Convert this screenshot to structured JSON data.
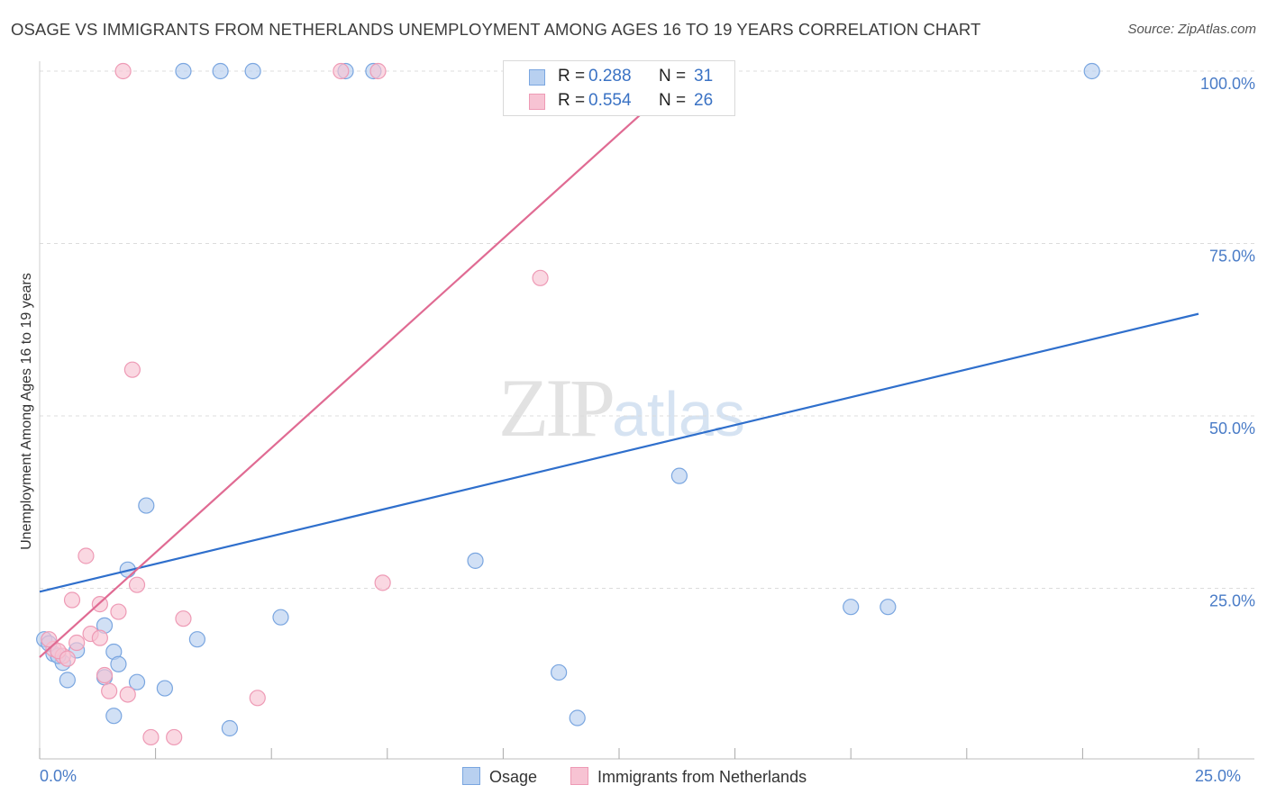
{
  "header": {
    "title": "OSAGE VS IMMIGRANTS FROM NETHERLANDS UNEMPLOYMENT AMONG AGES 16 TO 19 YEARS CORRELATION CHART",
    "source": "Source: ZipAtlas.com"
  },
  "watermark": {
    "zip": "ZIP",
    "atlas": "atlas"
  },
  "legend": {
    "rows": [
      {
        "r_label": "R = ",
        "r_value": "0.288",
        "n_label": "N = ",
        "n_value": "31"
      },
      {
        "r_label": "R = ",
        "r_value": "0.554",
        "n_label": "N = ",
        "n_value": "26"
      }
    ]
  },
  "colors": {
    "osage_fill": "#b8d0f0",
    "osage_stroke": "#7aa6e0",
    "osage_line": "#2f6fcc",
    "neth_fill": "#f7c3d3",
    "neth_stroke": "#ee9ab5",
    "neth_line": "#e06b93"
  },
  "chart_data": {
    "type": "scatter",
    "title": "OSAGE VS IMMIGRANTS FROM NETHERLANDS UNEMPLOYMENT AMONG AGES 16 TO 19 YEARS CORRELATION CHART",
    "xlabel": "",
    "ylabel": "Unemployment Among Ages 16 to 19 years",
    "xlim": [
      0,
      25
    ],
    "ylim": [
      0,
      100
    ],
    "x_tick_labels": [
      "0.0%",
      "25.0%"
    ],
    "y_tick_labels": [
      "25.0%",
      "50.0%",
      "75.0%",
      "100.0%"
    ],
    "y_ticks": [
      25,
      50,
      75,
      100
    ],
    "grid": true,
    "legend_position": "top-center",
    "series": [
      {
        "name": "Osage",
        "r": 0.288,
        "n": 31,
        "trend": [
          [
            0,
            24.5
          ],
          [
            25,
            64.8
          ]
        ],
        "points": [
          [
            3.1,
            100
          ],
          [
            3.9,
            100
          ],
          [
            4.6,
            100
          ],
          [
            6.6,
            100
          ],
          [
            7.2,
            100
          ],
          [
            22.7,
            100
          ],
          [
            2.3,
            37
          ],
          [
            13.8,
            41.3
          ],
          [
            9.4,
            29
          ],
          [
            1.9,
            27.7
          ],
          [
            5.2,
            20.8
          ],
          [
            1.4,
            19.6
          ],
          [
            3.4,
            17.6
          ],
          [
            0.1,
            17.6
          ],
          [
            0.8,
            16
          ],
          [
            1.6,
            15.8
          ],
          [
            0.3,
            15.5
          ],
          [
            0.5,
            14.2
          ],
          [
            1.7,
            14
          ],
          [
            1.4,
            12.1
          ],
          [
            0.6,
            11.7
          ],
          [
            2.1,
            11.4
          ],
          [
            2.7,
            10.5
          ],
          [
            11.2,
            12.8
          ],
          [
            17.5,
            22.3
          ],
          [
            18.3,
            22.3
          ],
          [
            1.6,
            6.5
          ],
          [
            11.6,
            6.2
          ],
          [
            4.1,
            4.7
          ],
          [
            0.2,
            17.0
          ],
          [
            0.4,
            15.2
          ]
        ]
      },
      {
        "name": "Immigrants from Netherlands",
        "r": 0.554,
        "n": 26,
        "trend": [
          [
            0,
            15
          ],
          [
            14,
            100
          ]
        ],
        "points": [
          [
            1.8,
            100
          ],
          [
            6.5,
            100
          ],
          [
            7.3,
            100
          ],
          [
            10.8,
            70
          ],
          [
            2.0,
            56.7
          ],
          [
            1.0,
            29.7
          ],
          [
            2.1,
            25.5
          ],
          [
            7.4,
            25.8
          ],
          [
            1.3,
            22.7
          ],
          [
            0.7,
            23.3
          ],
          [
            1.7,
            21.6
          ],
          [
            3.1,
            20.6
          ],
          [
            1.1,
            18.4
          ],
          [
            1.3,
            17.8
          ],
          [
            0.8,
            17.1
          ],
          [
            0.3,
            16.2
          ],
          [
            0.2,
            17.6
          ],
          [
            0.5,
            15.2
          ],
          [
            1.4,
            12.4
          ],
          [
            1.5,
            10.1
          ],
          [
            1.9,
            9.6
          ],
          [
            4.7,
            9.1
          ],
          [
            2.4,
            3.4
          ],
          [
            2.9,
            3.4
          ],
          [
            0.4,
            15.9
          ],
          [
            0.6,
            14.8
          ]
        ]
      }
    ]
  }
}
